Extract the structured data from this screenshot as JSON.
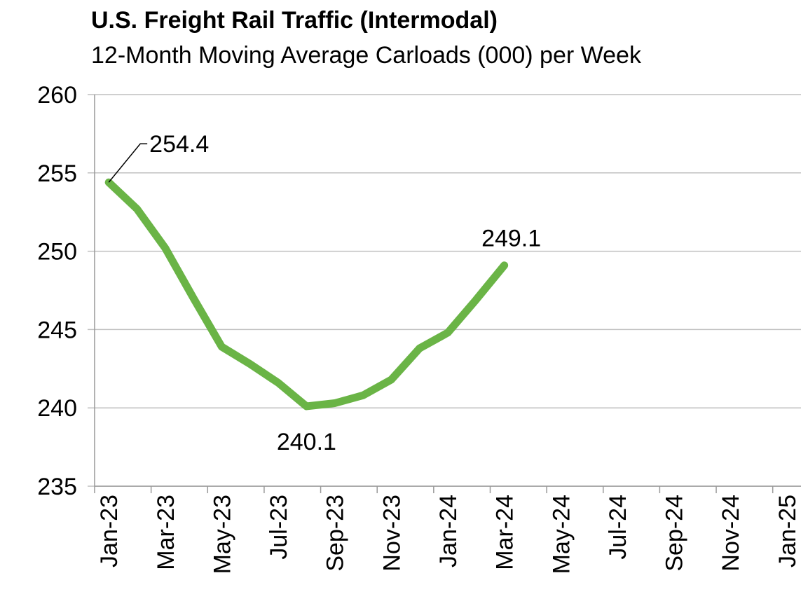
{
  "chart_data": {
    "type": "line",
    "title": "U.S. Freight Rail Traffic (Intermodal)",
    "subtitle": "12-Month Moving Average Carloads (000) per Week",
    "categories": [
      "Jan-23",
      null,
      "Mar-23",
      null,
      "May-23",
      null,
      "Jul-23",
      null,
      "Sep-23",
      null,
      "Nov-23",
      null,
      "Jan-24",
      null,
      "Mar-24",
      null,
      "May-24",
      null,
      "Jul-24",
      null,
      "Sep-24",
      null,
      "Nov-24",
      null,
      "Jan-25"
    ],
    "series": [
      {
        "name": "Intermodal",
        "color": "#6ab446",
        "values": [
          254.4,
          252.7,
          250.2,
          247.0,
          243.9,
          242.8,
          241.6,
          240.1,
          240.3,
          240.8,
          241.8,
          243.8,
          244.8,
          246.9,
          249.1,
          null,
          null,
          null,
          null,
          null,
          null,
          null,
          null,
          null,
          null
        ]
      }
    ],
    "ylim": [
      235,
      260
    ],
    "yticks": [
      235,
      240,
      245,
      250,
      255,
      260
    ],
    "grid": true,
    "labeled_points": [
      0,
      7,
      14
    ]
  }
}
